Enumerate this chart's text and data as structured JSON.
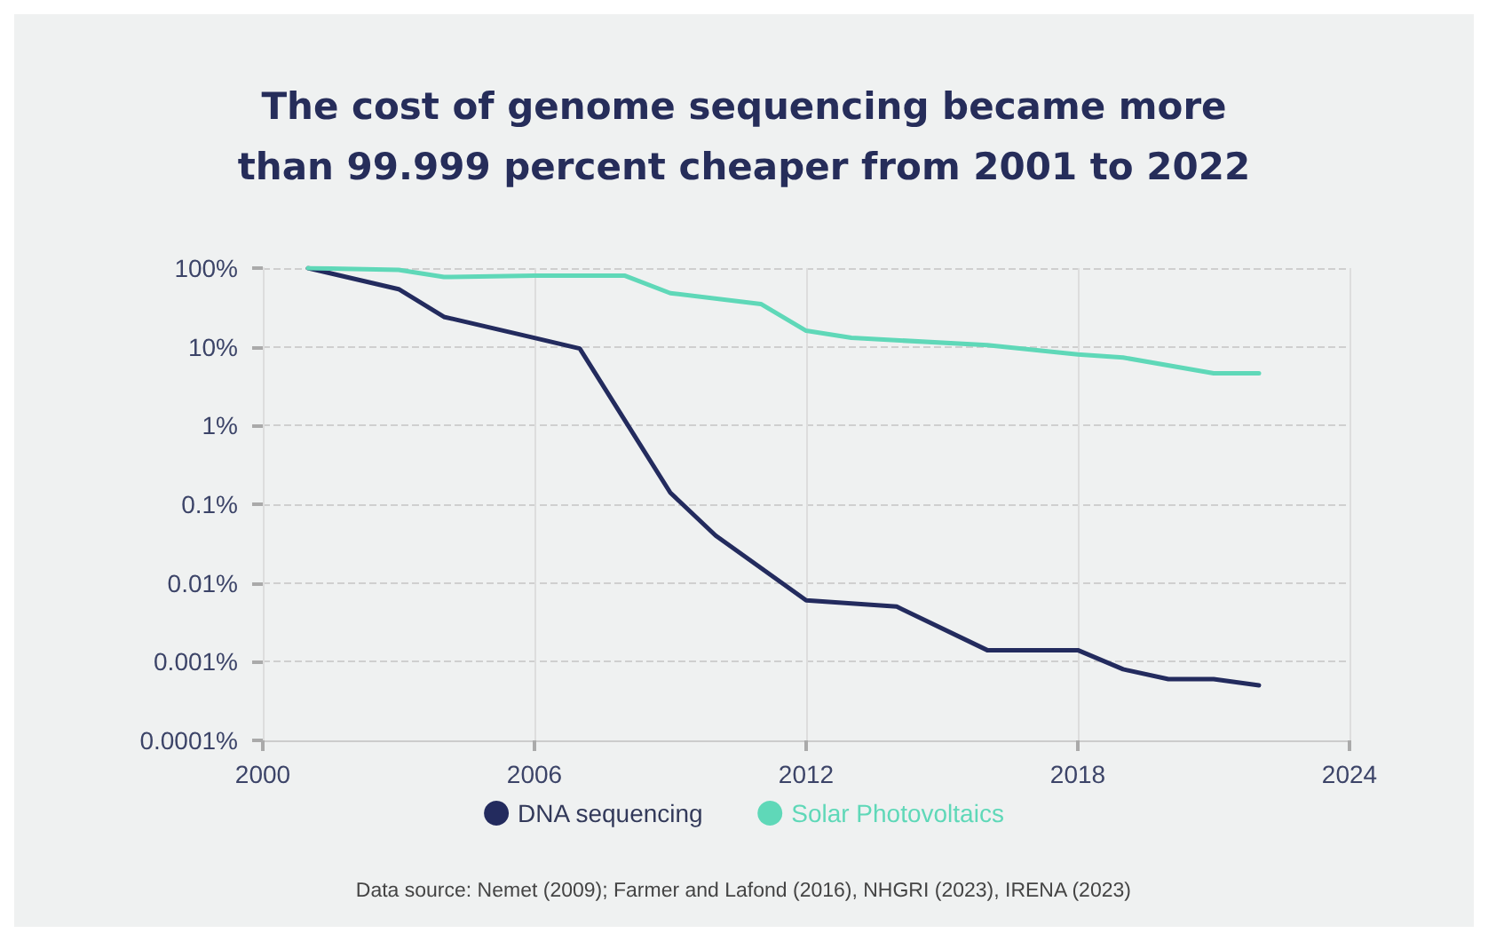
{
  "chart_data": {
    "type": "line",
    "title": "The cost of genome sequencing became more\nthan 99.999 percent cheaper from 2001 to 2022",
    "series": [
      {
        "name": "DNA sequencing",
        "color": "#232b5e",
        "x": [
          2001,
          2003,
          2004,
          2006,
          2007,
          2009,
          2010,
          2012,
          2014,
          2016,
          2018,
          2019,
          2020,
          2021,
          2022
        ],
        "values": [
          100,
          54,
          24,
          13,
          9.5,
          0.14,
          0.04,
          0.006,
          0.005,
          0.0014,
          0.0014,
          0.0008,
          0.0006,
          0.0006,
          0.0005
        ]
      },
      {
        "name": "Solar Photovoltaics",
        "color": "#5fd8b8",
        "x": [
          2001,
          2003,
          2004,
          2006,
          2008,
          2009,
          2011,
          2012,
          2013,
          2016,
          2018,
          2019,
          2021,
          2022
        ],
        "values": [
          100,
          95,
          77,
          80,
          80,
          48,
          35,
          16,
          13,
          10.5,
          8,
          7.3,
          4.6,
          4.6
        ]
      }
    ],
    "log": "y",
    "ylim": [
      0.0001,
      100
    ],
    "yticks": [
      {
        "value": 0.0001,
        "label": "0.0001%"
      },
      {
        "value": 0.001,
        "label": "0.001%"
      },
      {
        "value": 0.01,
        "label": "0.01%"
      },
      {
        "value": 0.1,
        "label": "0.1%"
      },
      {
        "value": 1,
        "label": "1%"
      },
      {
        "value": 10,
        "label": "10%"
      },
      {
        "value": 100,
        "label": "100%"
      }
    ],
    "xlim": [
      2000,
      2024
    ],
    "xticks": [
      2000,
      2006,
      2012,
      2018,
      2024
    ],
    "grid": true,
    "legend": "bottom",
    "marker": "none",
    "line_style": "solid",
    "annotations": [
      "Data source: Nemet (2009); Farmer and Lafond (2016), NHGRI (2023), IRENA (2023)"
    ]
  }
}
